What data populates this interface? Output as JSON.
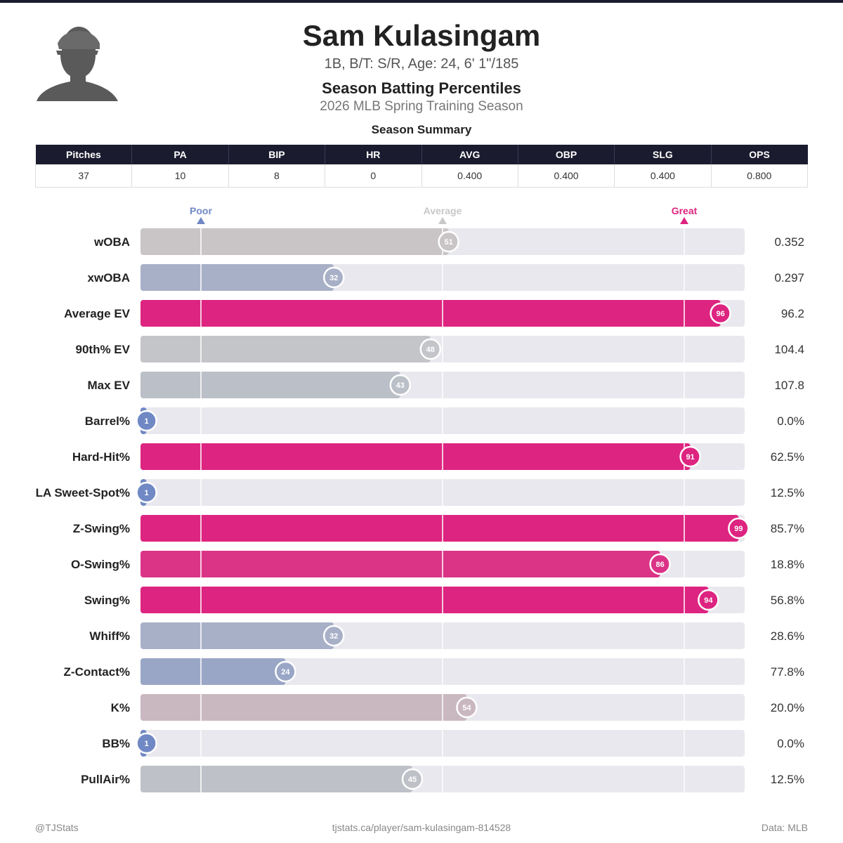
{
  "player": {
    "name": "Sam Kulasingam",
    "bio": "1B, B/T: S/R, Age: 24, 6' 1\"/185",
    "chart_title": "Season Batting Percentiles",
    "season": "2026 MLB Spring Training Season"
  },
  "summary": {
    "title": "Season Summary",
    "headers": [
      "Pitches",
      "PA",
      "BIP",
      "HR",
      "AVG",
      "OBP",
      "SLG",
      "OPS"
    ],
    "values": [
      "37",
      "10",
      "8",
      "0",
      "0.400",
      "0.400",
      "0.400",
      "0.800"
    ]
  },
  "colors": {
    "poor": "#7088c4",
    "average": "#c8c8c8",
    "great": "#dd2480",
    "track": "#e8e8ee",
    "header_bg": "#1b1b2f"
  },
  "chart_data": {
    "type": "bar",
    "orientation": "horizontal",
    "xlim": [
      0,
      100
    ],
    "grid": true,
    "markers": [
      {
        "label": "Poor",
        "value": 10
      },
      {
        "label": "Average",
        "value": 50
      },
      {
        "label": "Great",
        "value": 90
      }
    ],
    "categories": [
      "wOBA",
      "xwOBA",
      "Average EV",
      "90th% EV",
      "Max EV",
      "Barrel%",
      "Hard-Hit%",
      "LA Sweet-Spot%",
      "Z-Swing%",
      "O-Swing%",
      "Swing%",
      "Whiff%",
      "Z-Contact%",
      "K%",
      "BB%",
      "PullAir%"
    ],
    "percentiles": [
      51,
      32,
      96,
      48,
      43,
      1,
      91,
      1,
      99,
      86,
      94,
      32,
      24,
      54,
      1,
      45
    ],
    "stat_values": [
      "0.352",
      "0.297",
      "96.2",
      "104.4",
      "107.8",
      "0.0%",
      "62.5%",
      "12.5%",
      "85.7%",
      "18.8%",
      "56.8%",
      "28.6%",
      "77.8%",
      "20.0%",
      "0.0%",
      "12.5%"
    ]
  },
  "footer": {
    "left": "@TJStats",
    "center": "tjstats.ca/player/sam-kulasingam-814528",
    "right": "Data: MLB"
  }
}
